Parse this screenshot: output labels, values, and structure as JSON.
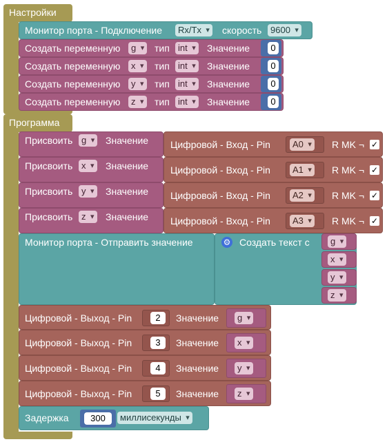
{
  "setup": {
    "title": "Настройки",
    "serial": {
      "label": "Монитор порта - Подключение",
      "port": "Rx/Tx",
      "speed_label": "скорость",
      "speed": "9600"
    },
    "variables": [
      {
        "create_label": "Создать переменную",
        "name": "g",
        "type_label": "тип",
        "type": "int",
        "value_label": "Значение",
        "value": "0"
      },
      {
        "create_label": "Создать переменную",
        "name": "x",
        "type_label": "тип",
        "type": "int",
        "value_label": "Значение",
        "value": "0"
      },
      {
        "create_label": "Создать переменную",
        "name": "y",
        "type_label": "тип",
        "type": "int",
        "value_label": "Значение",
        "value": "0"
      },
      {
        "create_label": "Создать переменную",
        "name": "z",
        "type_label": "тип",
        "type": "int",
        "value_label": "Значение",
        "value": "0"
      }
    ]
  },
  "program": {
    "title": "Программа",
    "assigns": [
      {
        "assign_label": "Присвоить",
        "var": "g",
        "value_label": "Значение",
        "input_label": "Цифровой - Вход - Pin",
        "pin": "A0",
        "mk_label": "R MK ¬",
        "checked": "✓"
      },
      {
        "assign_label": "Присвоить",
        "var": "x",
        "value_label": "Значение",
        "input_label": "Цифровой - Вход - Pin",
        "pin": "A1",
        "mk_label": "R MK ¬",
        "checked": "✓"
      },
      {
        "assign_label": "Присвоить",
        "var": "y",
        "value_label": "Значение",
        "input_label": "Цифровой - Вход - Pin",
        "pin": "A2",
        "mk_label": "R MK ¬",
        "checked": "✓"
      },
      {
        "assign_label": "Присвоить",
        "var": "z",
        "value_label": "Значение",
        "input_label": "Цифровой - Вход - Pin",
        "pin": "A3",
        "mk_label": "R MK ¬",
        "checked": "✓"
      }
    ],
    "serial_send": {
      "label": "Монитор порта - Отправить значение",
      "text_create_label": "Создать текст с",
      "items": [
        "g",
        "x",
        "y",
        "z"
      ]
    },
    "outputs": [
      {
        "label": "Цифровой - Выход - Pin",
        "pin": "2",
        "value_label": "Значение",
        "var": "g"
      },
      {
        "label": "Цифровой - Выход - Pin",
        "pin": "3",
        "value_label": "Значение",
        "var": "x"
      },
      {
        "label": "Цифровой - Выход - Pin",
        "pin": "4",
        "value_label": "Значение",
        "var": "y"
      },
      {
        "label": "Цифровой - Выход - Pin",
        "pin": "5",
        "value_label": "Значение",
        "var": "z"
      }
    ],
    "delay": {
      "label": "Задержка",
      "value": "300",
      "unit": "миллисекунды"
    }
  }
}
